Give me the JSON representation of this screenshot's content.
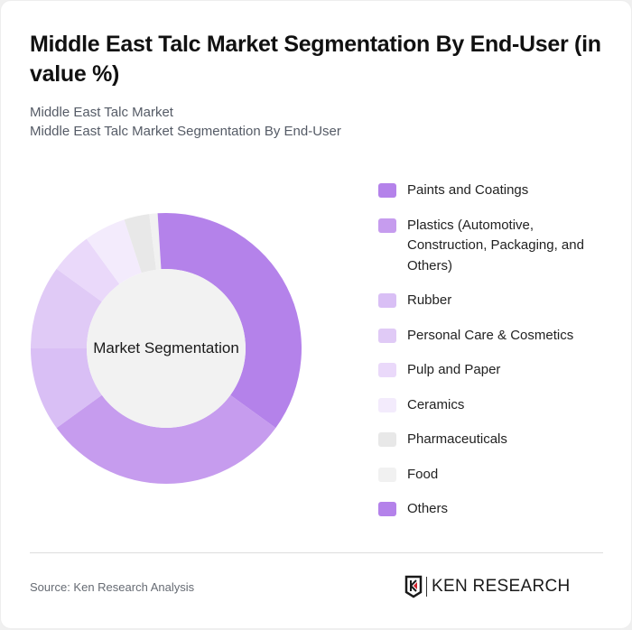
{
  "header": {
    "title": "Middle East Talc Market Segmentation By End-User (in value %)",
    "subtitle_line1": "Middle East Talc Market",
    "subtitle_line2": "Middle East Talc Market Segmentation By End-User"
  },
  "chart": {
    "center_label": "Market Segmentation"
  },
  "legend": [
    {
      "label": "Paints and Coatings",
      "color": "#b482ea"
    },
    {
      "label": "Plastics (Automotive, Construction, Packaging, and Others)",
      "color": "#c69cee"
    },
    {
      "label": "Rubber",
      "color": "#d9bff5"
    },
    {
      "label": "Personal Care & Cosmetics",
      "color": "#e0caf6"
    },
    {
      "label": "Pulp and Paper",
      "color": "#ead9fa"
    },
    {
      "label": "Ceramics",
      "color": "#f3ebfc"
    },
    {
      "label": "Pharmaceuticals",
      "color": "#e8e8e8"
    },
    {
      "label": "Food",
      "color": "#f1f1f1"
    },
    {
      "label": "Others",
      "color": "#b482ea"
    }
  ],
  "footer": {
    "source": "Source: Ken Research Analysis",
    "logo_text": "KEN RESEARCH"
  },
  "chart_data": {
    "type": "pie",
    "title": "Middle East Talc Market Segmentation By End-User (in value %)",
    "subtitle": "Middle East Talc Market Segmentation By End-User",
    "center_label": "Market Segmentation",
    "donut": true,
    "categories": [
      "Paints and Coatings",
      "Plastics (Automotive, Construction, Packaging, and Others)",
      "Rubber",
      "Personal Care & Cosmetics",
      "Pulp and Paper",
      "Ceramics",
      "Pharmaceuticals",
      "Food",
      "Others"
    ],
    "values": [
      35,
      30,
      10,
      10,
      5,
      5,
      3,
      1,
      1
    ],
    "colors": [
      "#b482ea",
      "#c69cee",
      "#d9bff5",
      "#e0caf6",
      "#ead9fa",
      "#f3ebfc",
      "#e8e8e8",
      "#f1f1f1",
      "#b482ea"
    ],
    "legend_position": "right",
    "unit": "%"
  }
}
